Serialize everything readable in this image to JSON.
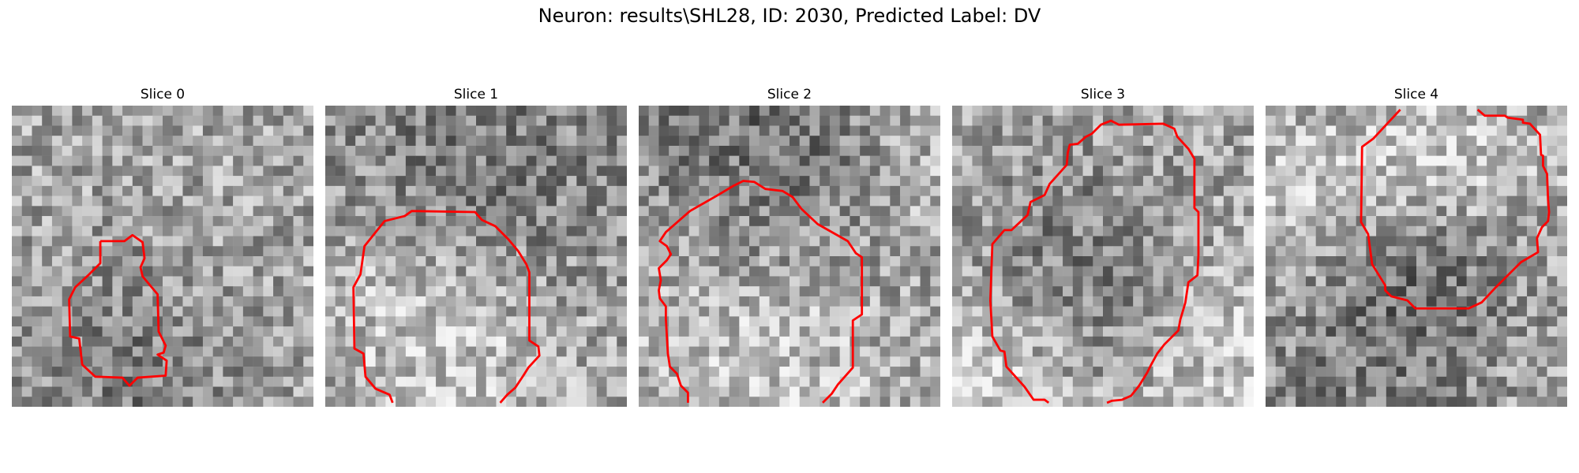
{
  "title": "Neuron: results\\SHL28, ID: 2030, Predicted Label: DV",
  "contour_color": "#ff0000",
  "panels": [
    {
      "label": "Slice 0",
      "seed": 11,
      "bias": [
        [
          0.35,
          0.85,
          0.35,
          -40
        ]
      ]
    },
    {
      "label": "Slice 1",
      "seed": 23,
      "bias": [
        [
          0.5,
          0.2,
          0.55,
          -45
        ],
        [
          0.45,
          0.82,
          0.4,
          40
        ],
        [
          0.2,
          0.55,
          0.25,
          25
        ]
      ]
    },
    {
      "label": "Slice 2",
      "seed": 37,
      "bias": [
        [
          0.4,
          0.15,
          0.5,
          -55
        ],
        [
          0.35,
          0.75,
          0.45,
          40
        ],
        [
          0.9,
          0.2,
          0.25,
          25
        ]
      ]
    },
    {
      "label": "Slice 3",
      "seed": 51,
      "bias": [
        [
          0.45,
          0.55,
          0.35,
          -45
        ],
        [
          0.1,
          0.9,
          0.3,
          45
        ],
        [
          0.9,
          0.8,
          0.35,
          40
        ]
      ]
    },
    {
      "label": "Slice 4",
      "seed": 67,
      "bias": [
        [
          0.6,
          0.18,
          0.3,
          45
        ],
        [
          0.55,
          0.5,
          0.3,
          -40
        ],
        [
          0.3,
          0.8,
          0.4,
          -40
        ],
        [
          0.1,
          0.3,
          0.3,
          35
        ]
      ]
    }
  ]
}
